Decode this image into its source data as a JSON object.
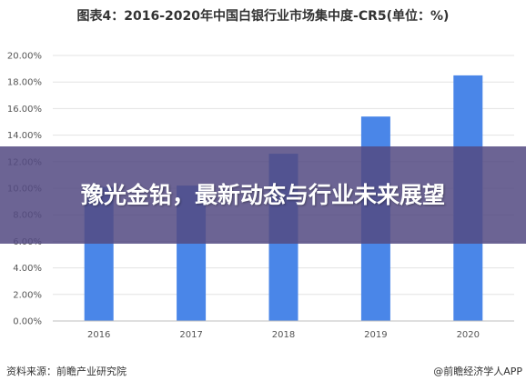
{
  "chart_data": {
    "type": "bar",
    "title": "图表4：2016-2020年中国白银行业市场集中度-CR5(单位：%)",
    "categories": [
      "2016",
      "2017",
      "2018",
      "2019",
      "2020"
    ],
    "values": [
      10.1,
      10.2,
      12.6,
      15.4,
      18.5
    ],
    "ylim": [
      0,
      20
    ],
    "yticks": [
      "0.00%",
      "2.00%",
      "4.00%",
      "6.00%",
      "8.00%",
      "10.00%",
      "12.00%",
      "14.00%",
      "16.00%",
      "18.00%",
      "20.00%"
    ],
    "grid": true,
    "bar_color": "#4a86e8"
  },
  "footer": {
    "source": "资料来源：前瞻产业研究院",
    "brand": "@前瞻经济学人APP"
  },
  "watermark": {
    "text": "前瞻产业研究院"
  },
  "overlay": {
    "headline": "豫光金铅，最新动态与行业未来展望",
    "background": "#544a82"
  }
}
